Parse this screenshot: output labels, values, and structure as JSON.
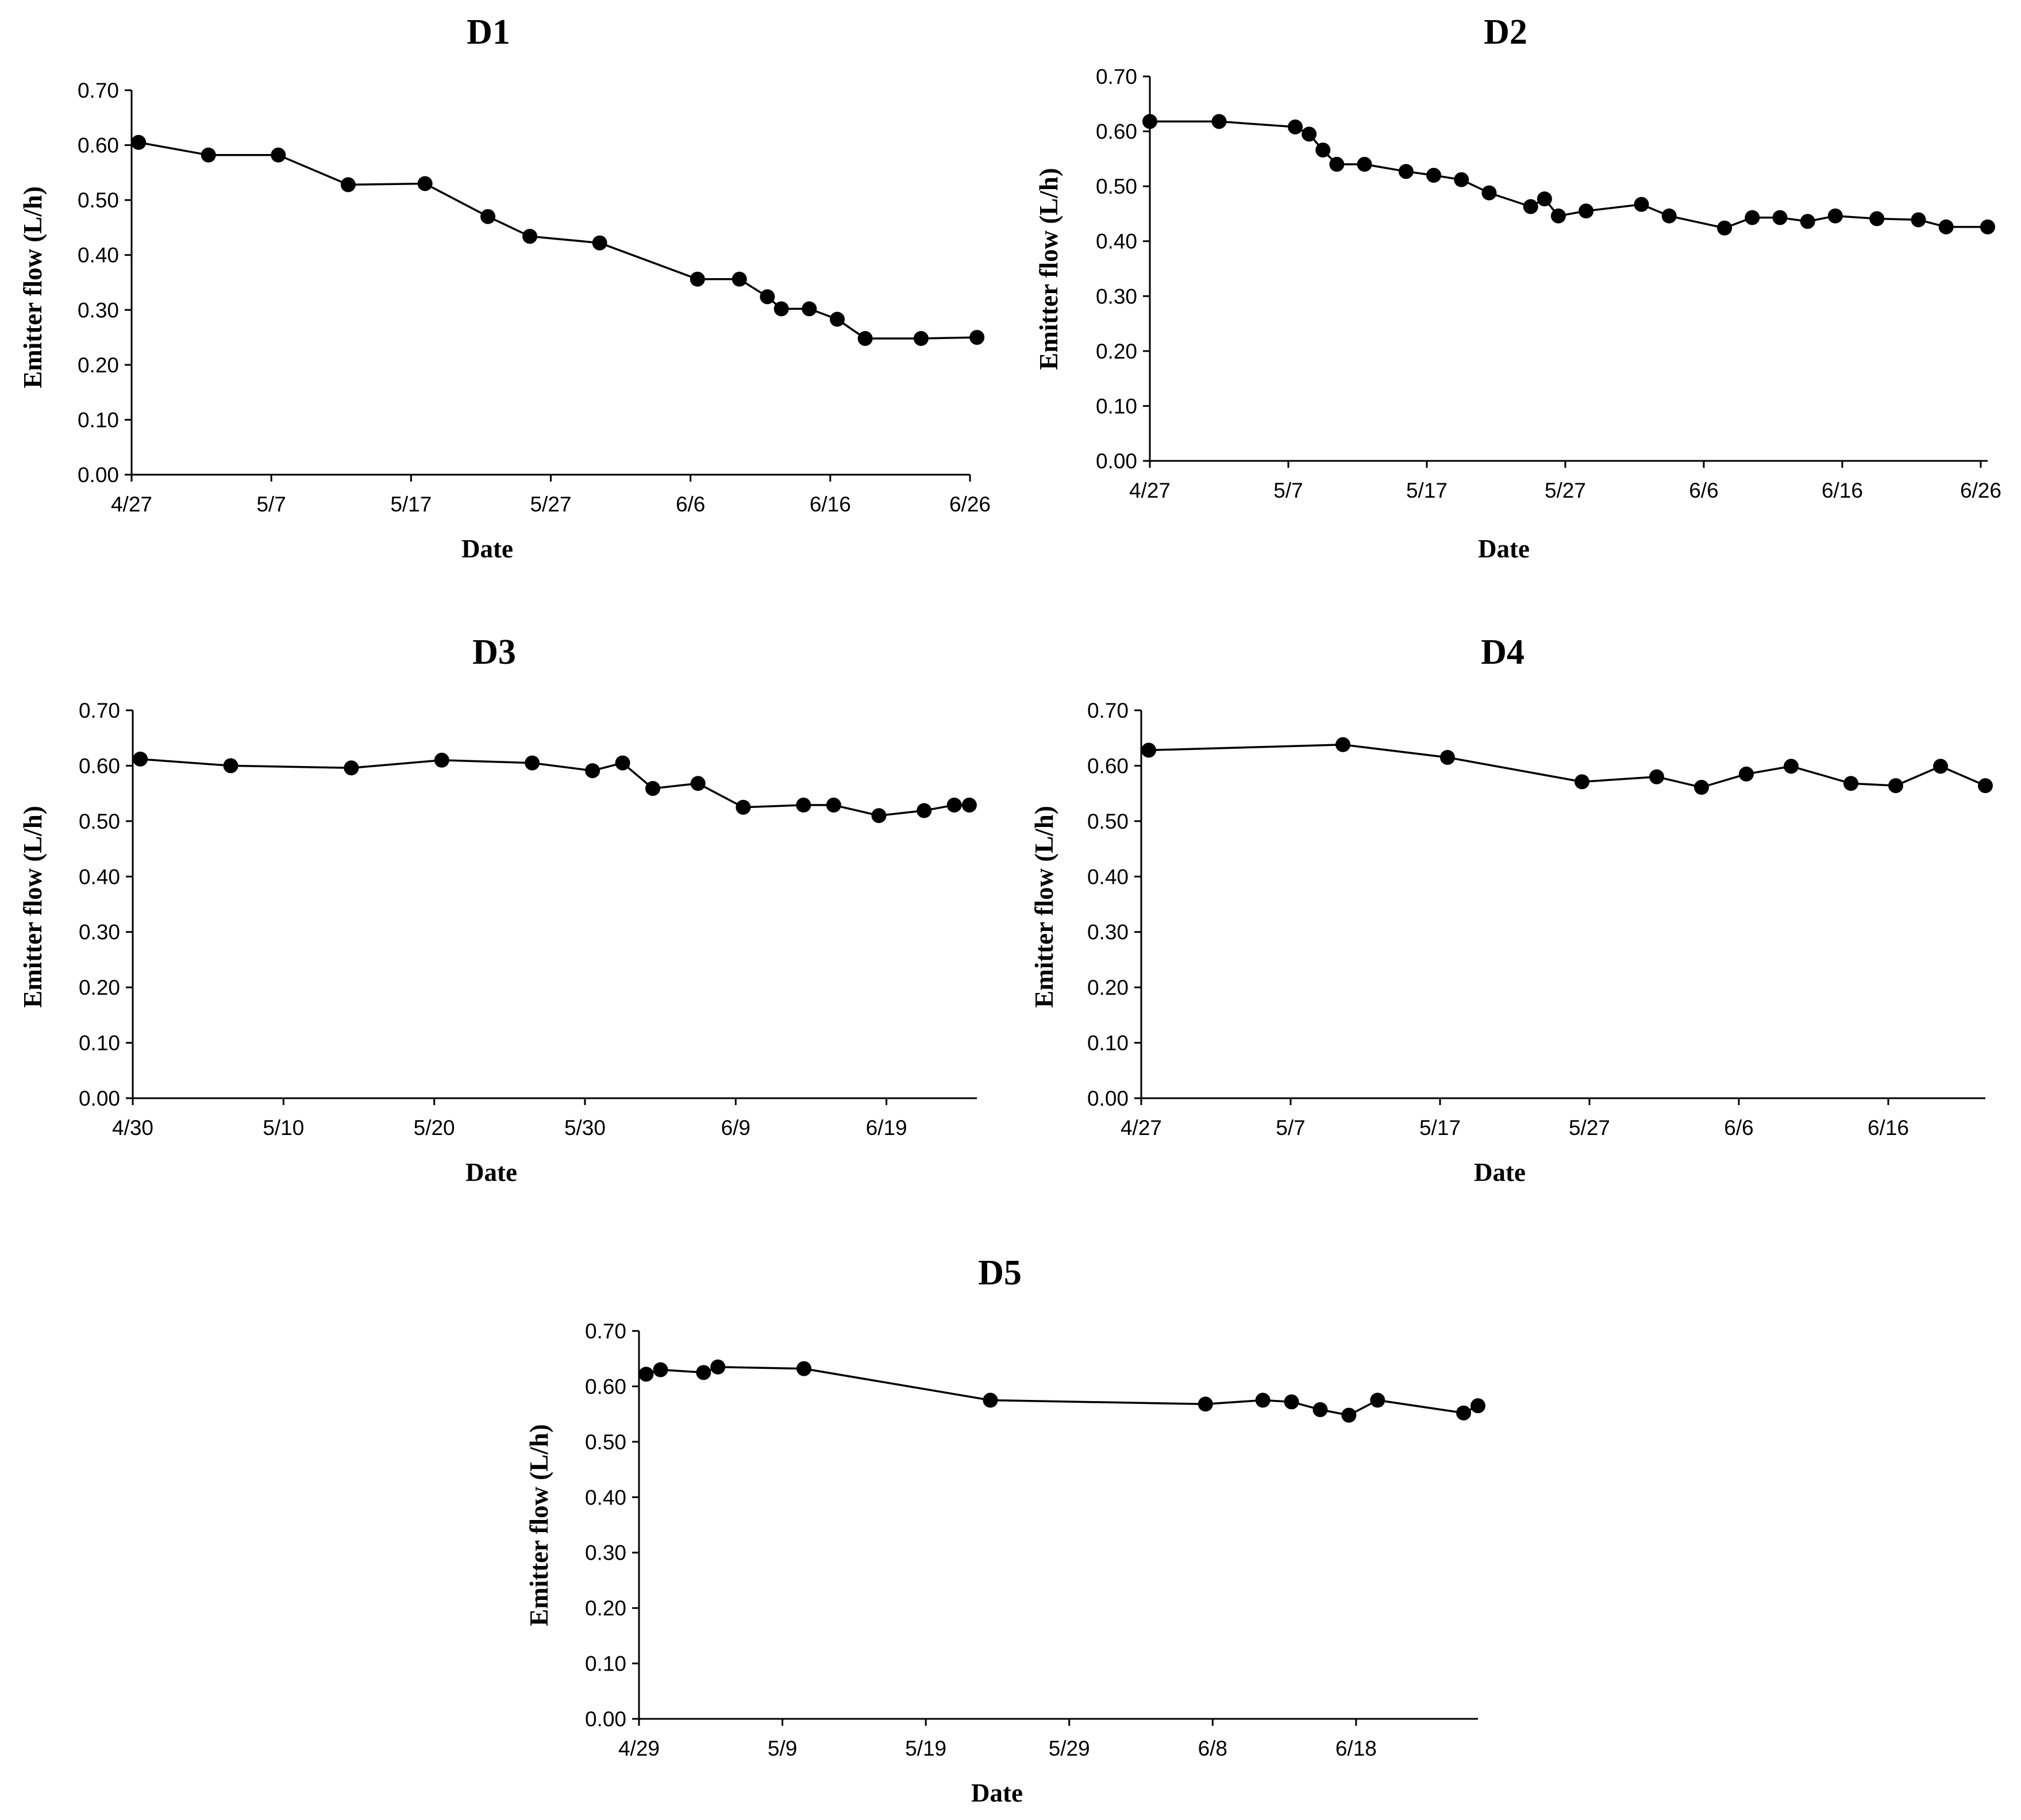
{
  "chart_data": [
    {
      "id": "D1",
      "type": "line",
      "title": "D1",
      "xlabel": "Date",
      "ylabel": "Emitter flow (L/h)",
      "ylim": [
        0,
        0.7
      ],
      "yticks": [
        "0.00",
        "0.10",
        "0.20",
        "0.30",
        "0.40",
        "0.50",
        "0.60",
        "0.70"
      ],
      "xlim": [
        0,
        60
      ],
      "xticks": [
        {
          "day": 0,
          "label": "4/27"
        },
        {
          "day": 10,
          "label": "5/7"
        },
        {
          "day": 20,
          "label": "5/17"
        },
        {
          "day": 30,
          "label": "5/27"
        },
        {
          "day": 40,
          "label": "6/6"
        },
        {
          "day": 50,
          "label": "6/16"
        },
        {
          "day": 60,
          "label": "6/26"
        }
      ],
      "series": [
        {
          "name": "Emitter flow",
          "points": [
            [
              0.5,
              0.605
            ],
            [
              5.5,
              0.582
            ],
            [
              10.5,
              0.582
            ],
            [
              15.5,
              0.528
            ],
            [
              21,
              0.53
            ],
            [
              25.5,
              0.47
            ],
            [
              28.5,
              0.434
            ],
            [
              33.5,
              0.422
            ],
            [
              40.5,
              0.356
            ],
            [
              43.5,
              0.356
            ],
            [
              45.5,
              0.324
            ],
            [
              46.5,
              0.302
            ],
            [
              48.5,
              0.302
            ],
            [
              50.5,
              0.283
            ],
            [
              52.5,
              0.248
            ],
            [
              56.5,
              0.248
            ],
            [
              60.5,
              0.25
            ]
          ]
        }
      ]
    },
    {
      "id": "D2",
      "type": "line",
      "title": "D2",
      "xlabel": "Date",
      "ylabel": "Emitter flow (L/h)",
      "ylim": [
        0,
        0.7
      ],
      "yticks": [
        "0.00",
        "0.10",
        "0.20",
        "0.30",
        "0.40",
        "0.50",
        "0.60",
        "0.70"
      ],
      "xlim": [
        0,
        60.5
      ],
      "xticks": [
        {
          "day": 0,
          "label": "4/27"
        },
        {
          "day": 10,
          "label": "5/7"
        },
        {
          "day": 20,
          "label": "5/17"
        },
        {
          "day": 30,
          "label": "5/27"
        },
        {
          "day": 40,
          "label": "6/6"
        },
        {
          "day": 50,
          "label": "6/16"
        },
        {
          "day": 60,
          "label": "6/26"
        }
      ],
      "series": [
        {
          "name": "Emitter flow",
          "points": [
            [
              0,
              0.618
            ],
            [
              5,
              0.618
            ],
            [
              10.5,
              0.608
            ],
            [
              11.5,
              0.595
            ],
            [
              12.5,
              0.566
            ],
            [
              13.5,
              0.54
            ],
            [
              15.5,
              0.54
            ],
            [
              18.5,
              0.527
            ],
            [
              20.5,
              0.52
            ],
            [
              22.5,
              0.512
            ],
            [
              24.5,
              0.488
            ],
            [
              27.5,
              0.463
            ],
            [
              28.5,
              0.477
            ],
            [
              29.5,
              0.446
            ],
            [
              31.5,
              0.455
            ],
            [
              35.5,
              0.467
            ],
            [
              37.5,
              0.446
            ],
            [
              41.5,
              0.424
            ],
            [
              43.5,
              0.443
            ],
            [
              45.5,
              0.443
            ],
            [
              47.5,
              0.436
            ],
            [
              49.5,
              0.446
            ],
            [
              52.5,
              0.441
            ],
            [
              55.5,
              0.439
            ],
            [
              57.5,
              0.426
            ],
            [
              60.5,
              0.426
            ]
          ]
        }
      ]
    },
    {
      "id": "D3",
      "type": "line",
      "title": "D3",
      "xlabel": "Date",
      "ylabel": "Emitter flow (L/h)",
      "ylim": [
        0,
        0.7
      ],
      "yticks": [
        "0.00",
        "0.10",
        "0.20",
        "0.30",
        "0.40",
        "0.50",
        "0.60",
        "0.70"
      ],
      "xlim": [
        0,
        56
      ],
      "xticks": [
        {
          "day": 0,
          "label": "4/30"
        },
        {
          "day": 10,
          "label": "5/10"
        },
        {
          "day": 20,
          "label": "5/20"
        },
        {
          "day": 30,
          "label": "5/30"
        },
        {
          "day": 40,
          "label": "6/9"
        },
        {
          "day": 50,
          "label": "6/19"
        }
      ],
      "series": [
        {
          "name": "Emitter flow",
          "points": [
            [
              0.5,
              0.612
            ],
            [
              6.5,
              0.6
            ],
            [
              14.5,
              0.596
            ],
            [
              20.5,
              0.61
            ],
            [
              26.5,
              0.605
            ],
            [
              30.5,
              0.591
            ],
            [
              32.5,
              0.605
            ],
            [
              34.5,
              0.559
            ],
            [
              37.5,
              0.568
            ],
            [
              40.5,
              0.525
            ],
            [
              44.5,
              0.529
            ],
            [
              46.5,
              0.529
            ],
            [
              49.5,
              0.51
            ],
            [
              52.5,
              0.519
            ],
            [
              54.5,
              0.529
            ],
            [
              55.5,
              0.529
            ]
          ]
        }
      ]
    },
    {
      "id": "D4",
      "type": "line",
      "title": "D4",
      "xlabel": "Date",
      "ylabel": "Emitter flow  (L/h)",
      "ylim": [
        0,
        0.7
      ],
      "yticks": [
        "0.00",
        "0.10",
        "0.20",
        "0.30",
        "0.40",
        "0.50",
        "0.60",
        "0.70"
      ],
      "xlim": [
        0,
        56.5
      ],
      "xticks": [
        {
          "day": 0,
          "label": "4/27"
        },
        {
          "day": 10,
          "label": "5/7"
        },
        {
          "day": 20,
          "label": "5/17"
        },
        {
          "day": 30,
          "label": "5/27"
        },
        {
          "day": 40,
          "label": "6/6"
        },
        {
          "day": 50,
          "label": "6/16"
        }
      ],
      "series": [
        {
          "name": "Emitter flow",
          "points": [
            [
              0.5,
              0.628
            ],
            [
              13.5,
              0.638
            ],
            [
              20.5,
              0.615
            ],
            [
              29.5,
              0.571
            ],
            [
              34.5,
              0.58
            ],
            [
              37.5,
              0.561
            ],
            [
              40.5,
              0.585
            ],
            [
              43.5,
              0.599
            ],
            [
              47.5,
              0.568
            ],
            [
              50.5,
              0.564
            ],
            [
              53.5,
              0.599
            ],
            [
              56.5,
              0.564
            ]
          ]
        }
      ]
    },
    {
      "id": "D5",
      "type": "line",
      "title": "D5",
      "xlabel": "Date",
      "ylabel": "Emitter flow (L/h)",
      "ylim": [
        0,
        0.7
      ],
      "yticks": [
        "0.00",
        "0.10",
        "0.20",
        "0.30",
        "0.40",
        "0.50",
        "0.60",
        "0.70"
      ],
      "xlim": [
        0,
        58.5
      ],
      "xticks": [
        {
          "day": 0,
          "label": "4/29"
        },
        {
          "day": 10,
          "label": "5/9"
        },
        {
          "day": 20,
          "label": "5/19"
        },
        {
          "day": 30,
          "label": "5/29"
        },
        {
          "day": 40,
          "label": "6/8"
        },
        {
          "day": 50,
          "label": "6/18"
        }
      ],
      "series": [
        {
          "name": "Emitter flow",
          "points": [
            [
              0.5,
              0.622
            ],
            [
              1.5,
              0.63
            ],
            [
              4.5,
              0.625
            ],
            [
              5.5,
              0.635
            ],
            [
              11.5,
              0.632
            ],
            [
              24.5,
              0.575
            ],
            [
              39.5,
              0.568
            ],
            [
              43.5,
              0.575
            ],
            [
              45.5,
              0.572
            ],
            [
              47.5,
              0.558
            ],
            [
              49.5,
              0.548
            ],
            [
              51.5,
              0.575
            ],
            [
              57.5,
              0.552
            ],
            [
              58.5,
              0.565
            ]
          ]
        }
      ]
    }
  ]
}
